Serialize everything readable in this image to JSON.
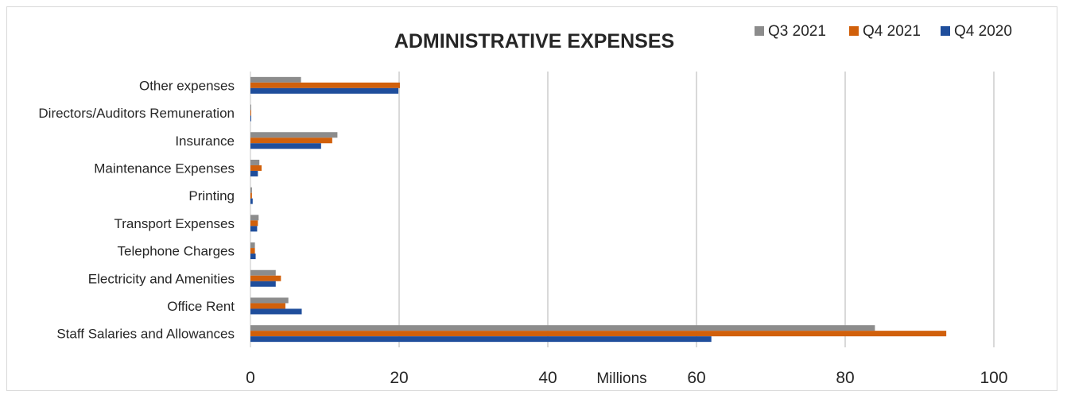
{
  "chart_data": {
    "type": "bar",
    "orientation": "horizontal",
    "title": "ADMINISTRATIVE EXPENSES",
    "xlabel": "Millions",
    "ylabel": "",
    "xlim": [
      0,
      100
    ],
    "xticks": [
      "0",
      "20",
      "40",
      "60",
      "80",
      "100"
    ],
    "grid": true,
    "legend_position": "top-right",
    "categories": [
      "Other expenses",
      "Directors/Auditors Remuneration",
      "Insurance",
      "Maintenance Expenses",
      "Printing",
      "Transport Expenses",
      "Telephone Charges",
      "Electricity and Amenities",
      "Office Rent",
      "Staff Salaries and Allowances"
    ],
    "series": [
      {
        "name": "Q3 2021",
        "color": "#8c8c8c",
        "values": [
          6.8,
          0.1,
          11.7,
          1.2,
          0.2,
          1.1,
          0.6,
          3.4,
          5.1,
          84.0
        ]
      },
      {
        "name": "Q4 2021",
        "color": "#d1600b",
        "values": [
          20.1,
          0.1,
          11.0,
          1.5,
          0.2,
          1.0,
          0.6,
          4.1,
          4.7,
          93.6
        ]
      },
      {
        "name": "Q4 2020",
        "color": "#1f4e9c",
        "values": [
          19.9,
          0.1,
          9.5,
          1.0,
          0.3,
          0.9,
          0.7,
          3.4,
          6.9,
          62.0
        ]
      }
    ]
  }
}
